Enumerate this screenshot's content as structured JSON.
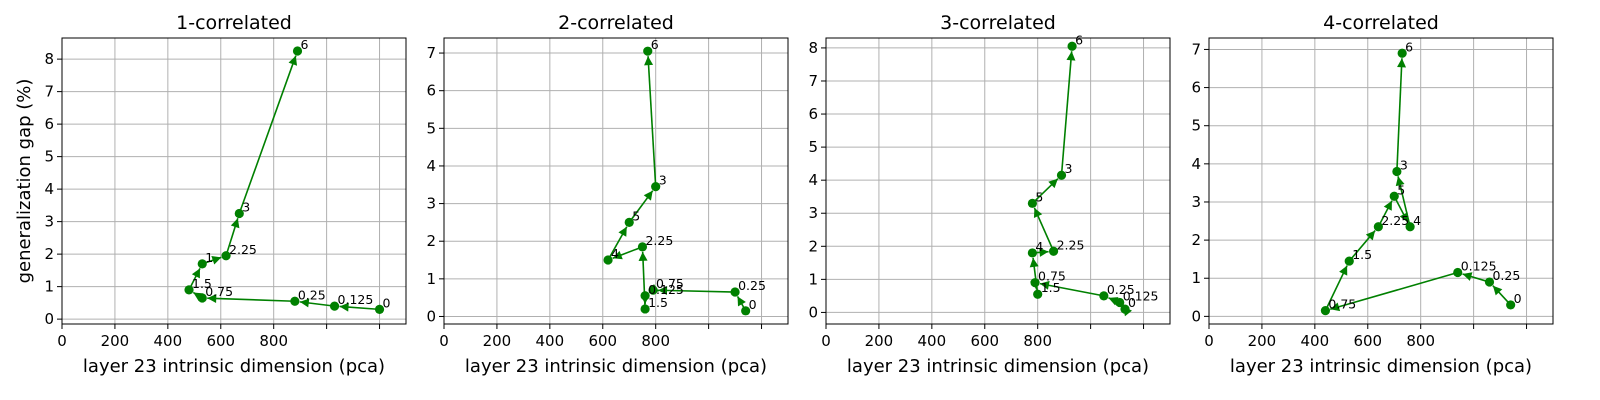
{
  "figure": {
    "ylabel": "generalization gap (%)"
  },
  "chart_data": [
    {
      "type": "scatter",
      "title": "1-correlated",
      "xlabel": "layer 23 intrinsic dimension (pca)",
      "ylabel": "generalization gap (%)",
      "xlim": [
        0,
        1300
      ],
      "ylim": [
        -0.15,
        8.65
      ],
      "xticks": [
        0,
        200,
        400,
        600,
        800
      ],
      "yticks": [
        0,
        1,
        2,
        3,
        4,
        5,
        6,
        7,
        8
      ],
      "grid": true,
      "color": "#008000",
      "points": [
        {
          "label": "0",
          "x": 1200,
          "y": 0.3
        },
        {
          "label": "0.125",
          "x": 1030,
          "y": 0.4
        },
        {
          "label": "0.25",
          "x": 880,
          "y": 0.55
        },
        {
          "label": "0.75",
          "x": 530,
          "y": 0.65
        },
        {
          "label": "1.5",
          "x": 480,
          "y": 0.9
        },
        {
          "label": "1",
          "x": 530,
          "y": 1.7
        },
        {
          "label": "2.25",
          "x": 620,
          "y": 1.95
        },
        {
          "label": "3",
          "x": 670,
          "y": 3.25
        },
        {
          "label": "6",
          "x": 890,
          "y": 8.25
        }
      ]
    },
    {
      "type": "scatter",
      "title": "2-correlated",
      "xlabel": "layer 23 intrinsic dimension (pca)",
      "ylabel": "",
      "xlim": [
        0,
        1300
      ],
      "ylim": [
        -0.2,
        7.4
      ],
      "xticks": [
        0,
        200,
        400,
        600,
        800
      ],
      "yticks": [
        0,
        1,
        2,
        3,
        4,
        5,
        6,
        7
      ],
      "grid": true,
      "color": "#008000",
      "points": [
        {
          "label": "0",
          "x": 1140,
          "y": 0.15
        },
        {
          "label": "0.25",
          "x": 1100,
          "y": 0.65
        },
        {
          "label": "0.75",
          "x": 790,
          "y": 0.7
        },
        {
          "label": "0.125",
          "x": 760,
          "y": 0.55
        },
        {
          "label": "1.5",
          "x": 760,
          "y": 0.2
        },
        {
          "label": "2.25",
          "x": 750,
          "y": 1.85
        },
        {
          "label": "4",
          "x": 620,
          "y": 1.5
        },
        {
          "label": "5",
          "x": 700,
          "y": 2.5
        },
        {
          "label": "3",
          "x": 800,
          "y": 3.45
        },
        {
          "label": "6",
          "x": 770,
          "y": 7.05
        }
      ]
    },
    {
      "type": "scatter",
      "title": "3-correlated",
      "xlabel": "layer 23 intrinsic dimension (pca)",
      "ylabel": "",
      "xlim": [
        0,
        1300
      ],
      "ylim": [
        -0.35,
        8.3
      ],
      "xticks": [
        0,
        200,
        400,
        600,
        800
      ],
      "yticks": [
        0,
        1,
        2,
        3,
        4,
        5,
        6,
        7,
        8
      ],
      "grid": true,
      "color": "#008000",
      "points": [
        {
          "label": "0",
          "x": 1130,
          "y": 0.1
        },
        {
          "label": "0.125",
          "x": 1110,
          "y": 0.3
        },
        {
          "label": "0.25",
          "x": 1050,
          "y": 0.5
        },
        {
          "label": "0.75",
          "x": 790,
          "y": 0.9
        },
        {
          "label": "1.5",
          "x": 800,
          "y": 0.55
        },
        {
          "label": "4",
          "x": 780,
          "y": 1.8
        },
        {
          "label": "2.25",
          "x": 860,
          "y": 1.85
        },
        {
          "label": "5",
          "x": 780,
          "y": 3.3
        },
        {
          "label": "3",
          "x": 890,
          "y": 4.15
        },
        {
          "label": "6",
          "x": 930,
          "y": 8.05
        }
      ]
    },
    {
      "type": "scatter",
      "title": "4-correlated",
      "xlabel": "layer 23 intrinsic dimension (pca)",
      "ylabel": "",
      "xlim": [
        0,
        1300
      ],
      "ylim": [
        -0.2,
        7.3
      ],
      "xticks": [
        0,
        200,
        400,
        600,
        800
      ],
      "yticks": [
        0,
        1,
        2,
        3,
        4,
        5,
        6,
        7
      ],
      "grid": true,
      "color": "#008000",
      "points": [
        {
          "label": "0",
          "x": 1140,
          "y": 0.3
        },
        {
          "label": "0.25",
          "x": 1060,
          "y": 0.9
        },
        {
          "label": "0.125",
          "x": 940,
          "y": 1.15
        },
        {
          "label": "0.75",
          "x": 440,
          "y": 0.15
        },
        {
          "label": "1.5",
          "x": 530,
          "y": 1.45
        },
        {
          "label": "2.25",
          "x": 640,
          "y": 2.35
        },
        {
          "label": "5",
          "x": 700,
          "y": 3.15
        },
        {
          "label": "4",
          "x": 760,
          "y": 2.35
        },
        {
          "label": "3",
          "x": 710,
          "y": 3.8
        },
        {
          "label": "6",
          "x": 730,
          "y": 6.9
        }
      ]
    }
  ]
}
